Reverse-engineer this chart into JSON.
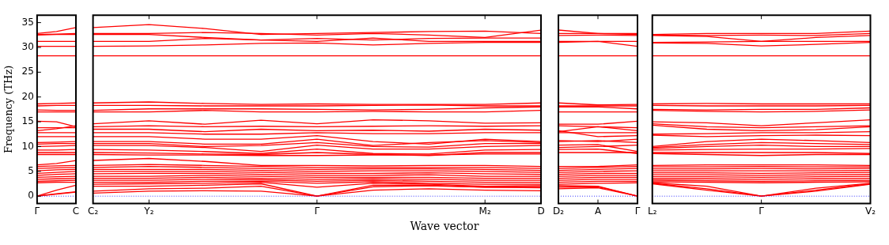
{
  "chart_data": [
    {
      "type": "line",
      "ylabel": "Frequency (THz)",
      "ylim": [
        -1.5,
        36.5
      ],
      "yticks": [
        0,
        5,
        10,
        15,
        20,
        25,
        30,
        35
      ],
      "marker": "none",
      "line_style": "solid",
      "legend": false,
      "ref_lines": [
        {
          "axis": "y",
          "value": 0,
          "color": "#0000ff",
          "line_style": "dotted"
        }
      ],
      "categories": [
        "Γ",
        null,
        "C"
      ],
      "series": [
        {
          "color": "#ff0000",
          "values": [
            32.8,
            33.2,
            34.0
          ]
        },
        {
          "color": "#ff0000",
          "values": [
            32.6,
            32.7,
            32.8
          ]
        },
        {
          "color": "#ff0000",
          "values": [
            32.5,
            32.6,
            32.6
          ]
        },
        {
          "color": "#ff0000",
          "values": [
            31.2,
            31.2,
            31.2
          ]
        },
        {
          "color": "#ff0000",
          "values": [
            30.2,
            30.2,
            30.2
          ]
        },
        {
          "color": "#ff0000",
          "values": [
            28.3,
            28.3,
            28.3
          ]
        },
        {
          "color": "#ff0000",
          "values": [
            18.6,
            18.7,
            18.8
          ]
        },
        {
          "color": "#ff0000",
          "values": [
            18.2,
            18.3,
            18.3
          ]
        },
        {
          "color": "#ff0000",
          "values": [
            17.4,
            17.3,
            17.3
          ]
        },
        {
          "color": "#ff0000",
          "values": [
            17.0,
            17.0,
            17.0
          ]
        },
        {
          "color": "#ff0000",
          "values": [
            15.1,
            15.0,
            14.0
          ]
        },
        {
          "color": "#ff0000",
          "values": [
            13.8,
            13.8,
            13.8
          ]
        },
        {
          "color": "#ff0000",
          "values": [
            13.2,
            13.6,
            14.2
          ]
        },
        {
          "color": "#ff0000",
          "values": [
            12.8,
            12.8,
            12.8
          ]
        },
        {
          "color": "#ff0000",
          "values": [
            12.0,
            12.0,
            12.0
          ]
        },
        {
          "color": "#ff0000",
          "values": [
            10.8,
            10.9,
            11.0
          ]
        },
        {
          "color": "#ff0000",
          "values": [
            10.5,
            10.6,
            10.6
          ]
        },
        {
          "color": "#ff0000",
          "values": [
            10.0,
            10.1,
            10.2
          ]
        },
        {
          "color": "#ff0000",
          "values": [
            9.3,
            9.3,
            9.4
          ]
        },
        {
          "color": "#ff0000",
          "values": [
            8.8,
            8.8,
            8.8
          ]
        },
        {
          "color": "#ff0000",
          "values": [
            8.4,
            8.4,
            8.4
          ]
        },
        {
          "color": "#ff0000",
          "values": [
            6.3,
            6.6,
            7.2
          ]
        },
        {
          "color": "#ff0000",
          "values": [
            6.0,
            6.1,
            6.2
          ]
        },
        {
          "color": "#ff0000",
          "values": [
            5.6,
            5.7,
            5.8
          ]
        },
        {
          "color": "#ff0000",
          "values": [
            5.1,
            5.3,
            5.4
          ]
        },
        {
          "color": "#ff0000",
          "values": [
            4.6,
            4.8,
            5.0
          ]
        },
        {
          "color": "#ff0000",
          "values": [
            4.2,
            4.4,
            4.5
          ]
        },
        {
          "color": "#ff0000",
          "values": [
            3.8,
            3.9,
            4.0
          ]
        },
        {
          "color": "#ff0000",
          "values": [
            3.4,
            3.5,
            3.6
          ]
        },
        {
          "color": "#ff0000",
          "values": [
            3.0,
            3.1,
            3.2
          ]
        },
        {
          "color": "#ff0000",
          "values": [
            2.7,
            2.8,
            2.8
          ]
        },
        {
          "color": "#ff0000",
          "values": [
            0,
            1.2,
            2.2
          ]
        },
        {
          "color": "#ff0000",
          "values": [
            0,
            0.5,
            0.9
          ]
        },
        {
          "color": "#ff0000",
          "values": [
            0,
            0.4,
            0.8
          ]
        }
      ]
    },
    {
      "type": "line",
      "xlabel": "Wave vector",
      "tick_labels": "x",
      "ylim": [
        -1.5,
        36.5
      ],
      "yticks": [
        0,
        5,
        10,
        15,
        20,
        25,
        30,
        35
      ],
      "marker": "none",
      "line_style": "solid",
      "legend": false,
      "ref_lines": [
        {
          "axis": "y",
          "value": 0,
          "color": "#0000ff",
          "line_style": "dotted"
        }
      ],
      "categories": [
        "C₂",
        "Y₂",
        null,
        null,
        "Γ",
        null,
        null,
        "M₂",
        "D"
      ],
      "series": [
        {
          "color": "#ff0000",
          "values": [
            34.0,
            34.6,
            33.8,
            32.6,
            32.8,
            33.0,
            33.2,
            33.3,
            32.8
          ]
        },
        {
          "color": "#ff0000",
          "values": [
            32.8,
            32.8,
            33.0,
            32.8,
            32.5,
            32.8,
            32.5,
            32.0,
            33.5
          ]
        },
        {
          "color": "#ff0000",
          "values": [
            32.6,
            32.6,
            32.0,
            31.5,
            31.8,
            31.5,
            31.8,
            31.9,
            31.9
          ]
        },
        {
          "color": "#ff0000",
          "values": [
            31.2,
            31.2,
            31.8,
            31.5,
            31.2,
            31.9,
            31.2,
            31.2,
            31.2
          ]
        },
        {
          "color": "#ff0000",
          "values": [
            30.2,
            30.3,
            30.5,
            30.8,
            30.9,
            30.5,
            30.8,
            31.0,
            31.0
          ]
        },
        {
          "color": "#ff0000",
          "values": [
            28.3,
            28.3,
            28.3,
            28.3,
            28.3,
            28.3,
            28.3,
            28.3,
            28.3
          ]
        },
        {
          "color": "#ff0000",
          "values": [
            18.8,
            19.0,
            18.7,
            18.5,
            18.6,
            18.5,
            18.5,
            18.5,
            18.8
          ]
        },
        {
          "color": "#ff0000",
          "values": [
            18.3,
            18.3,
            18.2,
            18.2,
            18.2,
            18.3,
            18.4,
            18.2,
            18.2
          ]
        },
        {
          "color": "#ff0000",
          "values": [
            17.3,
            17.6,
            17.6,
            17.6,
            17.5,
            17.4,
            17.5,
            17.8,
            18.0
          ]
        },
        {
          "color": "#ff0000",
          "values": [
            17.0,
            17.0,
            17.3,
            17.0,
            17.0,
            17.1,
            17.0,
            17.0,
            17.3
          ]
        },
        {
          "color": "#ff0000",
          "values": [
            14.6,
            15.2,
            14.5,
            15.3,
            14.6,
            15.4,
            15.2,
            14.7,
            14.8
          ]
        },
        {
          "color": "#ff0000",
          "values": [
            14.0,
            14.2,
            14.0,
            14.1,
            14.0,
            14.1,
            14.2,
            14.1,
            14.2
          ]
        },
        {
          "color": "#ff0000",
          "values": [
            13.5,
            13.5,
            13.0,
            13.5,
            13.2,
            13.3,
            13.1,
            13.5,
            13.3
          ]
        },
        {
          "color": "#ff0000",
          "values": [
            12.8,
            12.8,
            12.5,
            12.5,
            12.8,
            12.6,
            12.6,
            12.8,
            12.8
          ]
        },
        {
          "color": "#ff0000",
          "values": [
            12.0,
            12.0,
            11.5,
            11.5,
            12.2,
            11.0,
            10.5,
            11.5,
            11.0
          ]
        },
        {
          "color": "#ff0000",
          "values": [
            11.0,
            11.0,
            10.5,
            10.5,
            11.5,
            10.2,
            10.8,
            11.2,
            10.8
          ]
        },
        {
          "color": "#ff0000",
          "values": [
            10.6,
            10.6,
            10.0,
            10.2,
            10.8,
            10.0,
            9.9,
            10.6,
            10.6
          ]
        },
        {
          "color": "#ff0000",
          "values": [
            10.2,
            10.2,
            9.8,
            9.0,
            10.3,
            9.5,
            9.5,
            10.0,
            10.2
          ]
        },
        {
          "color": "#ff0000",
          "values": [
            9.4,
            9.3,
            9.0,
            8.6,
            9.5,
            8.6,
            8.5,
            9.3,
            9.4
          ]
        },
        {
          "color": "#ff0000",
          "values": [
            8.8,
            8.7,
            8.5,
            8.4,
            8.8,
            8.4,
            8.2,
            8.8,
            8.8
          ]
        },
        {
          "color": "#ff0000",
          "values": [
            8.4,
            8.3,
            8.3,
            8.2,
            8.2,
            8.3,
            8.3,
            8.5,
            8.5
          ]
        },
        {
          "color": "#ff0000",
          "values": [
            7.2,
            7.6,
            7.0,
            6.2,
            6.2,
            6.1,
            6.2,
            6.2,
            6.0
          ]
        },
        {
          "color": "#ff0000",
          "values": [
            6.2,
            6.4,
            6.2,
            6.0,
            5.8,
            5.8,
            5.8,
            5.8,
            5.6
          ]
        },
        {
          "color": "#ff0000",
          "values": [
            5.8,
            6.0,
            5.8,
            5.6,
            5.4,
            5.5,
            5.5,
            5.4,
            5.2
          ]
        },
        {
          "color": "#ff0000",
          "values": [
            5.4,
            5.4,
            5.4,
            5.2,
            5.0,
            5.1,
            5.1,
            5.0,
            4.8
          ]
        },
        {
          "color": "#ff0000",
          "values": [
            5.0,
            5.0,
            5.0,
            4.8,
            4.6,
            4.6,
            4.7,
            4.5,
            4.4
          ]
        },
        {
          "color": "#ff0000",
          "values": [
            4.5,
            4.6,
            4.6,
            4.4,
            4.2,
            4.2,
            4.3,
            4.0,
            4.0
          ]
        },
        {
          "color": "#ff0000",
          "values": [
            4.0,
            4.0,
            4.2,
            4.0,
            3.8,
            3.8,
            3.8,
            3.6,
            3.6
          ]
        },
        {
          "color": "#ff0000",
          "values": [
            3.6,
            3.6,
            3.8,
            3.6,
            3.4,
            3.5,
            3.4,
            3.2,
            3.2
          ]
        },
        {
          "color": "#ff0000",
          "values": [
            3.2,
            3.2,
            3.4,
            3.3,
            3.0,
            3.2,
            3.0,
            2.8,
            2.8
          ]
        },
        {
          "color": "#ff0000",
          "values": [
            2.8,
            2.8,
            3.0,
            3.0,
            2.6,
            2.9,
            2.6,
            2.4,
            2.4
          ]
        },
        {
          "color": "#ff0000",
          "values": [
            2.4,
            2.5,
            2.6,
            2.8,
            1.8,
            2.6,
            2.4,
            2.0,
            2.1
          ]
        },
        {
          "color": "#ff0000",
          "values": [
            2.0,
            2.0,
            2.2,
            2.5,
            0,
            2.2,
            2.2,
            1.8,
            1.8
          ]
        },
        {
          "color": "#ff0000",
          "values": [
            1.0,
            1.5,
            1.6,
            2.0,
            0,
            1.9,
            2.1,
            1.8,
            1.7
          ]
        },
        {
          "color": "#ff0000",
          "values": [
            0.6,
            1.0,
            1.1,
            1.0,
            0,
            1.2,
            1.5,
            1.2,
            1.1
          ]
        }
      ]
    },
    {
      "type": "line",
      "tick_labels": "x",
      "ylim": [
        -1.5,
        36.5
      ],
      "yticks": [
        0,
        5,
        10,
        15,
        20,
        25,
        30,
        35
      ],
      "marker": "none",
      "line_style": "solid",
      "legend": false,
      "ref_lines": [
        {
          "axis": "y",
          "value": 0,
          "color": "#0000ff",
          "line_style": "dotted"
        }
      ],
      "categories": [
        "D₂",
        "A",
        "Γ"
      ],
      "series": [
        {
          "color": "#ff0000",
          "values": [
            33.5,
            32.8,
            32.8
          ]
        },
        {
          "color": "#ff0000",
          "values": [
            32.8,
            32.8,
            32.6
          ]
        },
        {
          "color": "#ff0000",
          "values": [
            32.4,
            32.5,
            32.4
          ]
        },
        {
          "color": "#ff0000",
          "values": [
            31.2,
            31.2,
            31.2
          ]
        },
        {
          "color": "#ff0000",
          "values": [
            31.0,
            31.2,
            30.2
          ]
        },
        {
          "color": "#ff0000",
          "values": [
            28.3,
            28.3,
            28.3
          ]
        },
        {
          "color": "#ff0000",
          "values": [
            18.8,
            18.4,
            18.5
          ]
        },
        {
          "color": "#ff0000",
          "values": [
            18.2,
            18.2,
            18.2
          ]
        },
        {
          "color": "#ff0000",
          "values": [
            18.0,
            18.0,
            17.6
          ]
        },
        {
          "color": "#ff0000",
          "values": [
            17.0,
            17.0,
            17.0
          ]
        },
        {
          "color": "#ff0000",
          "values": [
            14.5,
            14.5,
            15.1
          ]
        },
        {
          "color": "#ff0000",
          "values": [
            14.2,
            14.0,
            13.8
          ]
        },
        {
          "color": "#ff0000",
          "values": [
            13.0,
            14.0,
            13.2
          ]
        },
        {
          "color": "#ff0000",
          "values": [
            12.8,
            12.8,
            12.8
          ]
        },
        {
          "color": "#ff0000",
          "values": [
            13.2,
            12.0,
            12.2
          ]
        },
        {
          "color": "#ff0000",
          "values": [
            11.2,
            11.0,
            11.5
          ]
        },
        {
          "color": "#ff0000",
          "values": [
            11.0,
            11.2,
            10.8
          ]
        },
        {
          "color": "#ff0000",
          "values": [
            10.3,
            10.4,
            9.0
          ]
        },
        {
          "color": "#ff0000",
          "values": [
            9.8,
            10.0,
            10.3
          ]
        },
        {
          "color": "#ff0000",
          "values": [
            9.4,
            9.5,
            8.6
          ]
        },
        {
          "color": "#ff0000",
          "values": [
            8.8,
            8.8,
            8.8
          ]
        },
        {
          "color": "#ff0000",
          "values": [
            6.0,
            6.0,
            6.3
          ]
        },
        {
          "color": "#ff0000",
          "values": [
            5.6,
            5.8,
            6.0
          ]
        },
        {
          "color": "#ff0000",
          "values": [
            5.2,
            5.4,
            5.6
          ]
        },
        {
          "color": "#ff0000",
          "values": [
            4.8,
            5.0,
            5.1
          ]
        },
        {
          "color": "#ff0000",
          "values": [
            4.4,
            4.6,
            4.6
          ]
        },
        {
          "color": "#ff0000",
          "values": [
            4.0,
            4.2,
            4.2
          ]
        },
        {
          "color": "#ff0000",
          "values": [
            3.6,
            3.8,
            3.8
          ]
        },
        {
          "color": "#ff0000",
          "values": [
            3.2,
            3.4,
            3.4
          ]
        },
        {
          "color": "#ff0000",
          "values": [
            2.8,
            3.0,
            3.0
          ]
        },
        {
          "color": "#ff0000",
          "values": [
            2.4,
            2.6,
            2.7
          ]
        },
        {
          "color": "#ff0000",
          "values": [
            2.1,
            2.0,
            0
          ]
        },
        {
          "color": "#ff0000",
          "values": [
            1.8,
            1.9,
            0
          ]
        },
        {
          "color": "#ff0000",
          "values": [
            1.5,
            1.7,
            0
          ]
        }
      ]
    },
    {
      "type": "line",
      "tick_labels": "x",
      "ylim": [
        -1.5,
        36.5
      ],
      "yticks": [
        0,
        5,
        10,
        15,
        20,
        25,
        30,
        35
      ],
      "marker": "none",
      "line_style": "solid",
      "legend": false,
      "ref_lines": [
        {
          "axis": "y",
          "value": 0,
          "color": "#0000ff",
          "line_style": "dotted"
        }
      ],
      "categories": [
        "L₂",
        null,
        "Γ",
        null,
        "V₂"
      ],
      "series": [
        {
          "color": "#ff0000",
          "values": [
            32.6,
            32.8,
            32.8,
            32.8,
            33.3
          ]
        },
        {
          "color": "#ff0000",
          "values": [
            32.5,
            32.4,
            32.5,
            32.4,
            32.8
          ]
        },
        {
          "color": "#ff0000",
          "values": [
            32.4,
            32.2,
            31.2,
            32.0,
            32.4
          ]
        },
        {
          "color": "#ff0000",
          "values": [
            31.0,
            31.1,
            31.2,
            31.2,
            31.2
          ]
        },
        {
          "color": "#ff0000",
          "values": [
            30.9,
            30.8,
            30.3,
            30.6,
            31.0
          ]
        },
        {
          "color": "#ff0000",
          "values": [
            28.3,
            28.3,
            28.3,
            28.3,
            28.3
          ]
        },
        {
          "color": "#ff0000",
          "values": [
            18.6,
            18.7,
            18.6,
            18.6,
            18.6
          ]
        },
        {
          "color": "#ff0000",
          "values": [
            18.3,
            18.2,
            18.2,
            18.2,
            18.3
          ]
        },
        {
          "color": "#ff0000",
          "values": [
            17.5,
            17.4,
            17.5,
            17.5,
            17.8
          ]
        },
        {
          "color": "#ff0000",
          "values": [
            17.3,
            17.1,
            17.0,
            17.1,
            17.4
          ]
        },
        {
          "color": "#ff0000",
          "values": [
            15.0,
            14.8,
            14.2,
            14.8,
            15.4
          ]
        },
        {
          "color": "#ff0000",
          "values": [
            14.6,
            14.0,
            13.8,
            14.0,
            14.2
          ]
        },
        {
          "color": "#ff0000",
          "values": [
            14.3,
            13.5,
            13.2,
            13.4,
            14.0
          ]
        },
        {
          "color": "#ff0000",
          "values": [
            12.5,
            12.6,
            12.8,
            12.8,
            13.0
          ]
        },
        {
          "color": "#ff0000",
          "values": [
            12.3,
            12.0,
            12.2,
            12.3,
            12.2
          ]
        },
        {
          "color": "#ff0000",
          "values": [
            10.0,
            11.0,
            11.5,
            11.2,
            10.8
          ]
        },
        {
          "color": "#ff0000",
          "values": [
            9.8,
            10.4,
            10.8,
            10.6,
            10.4
          ]
        },
        {
          "color": "#ff0000",
          "values": [
            9.6,
            10.0,
            10.3,
            10.0,
            10.0
          ]
        },
        {
          "color": "#ff0000",
          "values": [
            9.3,
            9.4,
            9.5,
            9.5,
            9.6
          ]
        },
        {
          "color": "#ff0000",
          "values": [
            8.8,
            8.8,
            8.8,
            8.8,
            8.6
          ]
        },
        {
          "color": "#ff0000",
          "values": [
            8.6,
            8.4,
            8.2,
            8.4,
            8.4
          ]
        },
        {
          "color": "#ff0000",
          "values": [
            6.2,
            6.3,
            6.3,
            6.3,
            6.2
          ]
        },
        {
          "color": "#ff0000",
          "values": [
            5.9,
            5.9,
            6.0,
            5.9,
            5.9
          ]
        },
        {
          "color": "#ff0000",
          "values": [
            5.5,
            5.5,
            5.6,
            5.5,
            5.6
          ]
        },
        {
          "color": "#ff0000",
          "values": [
            5.1,
            5.1,
            5.1,
            5.1,
            5.2
          ]
        },
        {
          "color": "#ff0000",
          "values": [
            4.7,
            4.7,
            4.6,
            4.7,
            4.8
          ]
        },
        {
          "color": "#ff0000",
          "values": [
            4.3,
            4.3,
            4.2,
            4.3,
            4.4
          ]
        },
        {
          "color": "#ff0000",
          "values": [
            3.9,
            3.9,
            3.8,
            3.9,
            4.0
          ]
        },
        {
          "color": "#ff0000",
          "values": [
            3.5,
            3.5,
            3.4,
            3.5,
            3.6
          ]
        },
        {
          "color": "#ff0000",
          "values": [
            3.2,
            3.1,
            3.0,
            3.1,
            3.2
          ]
        },
        {
          "color": "#ff0000",
          "values": [
            2.9,
            2.8,
            2.7,
            2.8,
            2.9
          ]
        },
        {
          "color": "#ff0000",
          "values": [
            2.7,
            2.0,
            0,
            1.6,
            2.6
          ]
        },
        {
          "color": "#ff0000",
          "values": [
            2.6,
            1.5,
            0,
            1.2,
            2.5
          ]
        },
        {
          "color": "#ff0000",
          "values": [
            2.5,
            1.2,
            0,
            1.0,
            2.4
          ]
        }
      ]
    }
  ]
}
